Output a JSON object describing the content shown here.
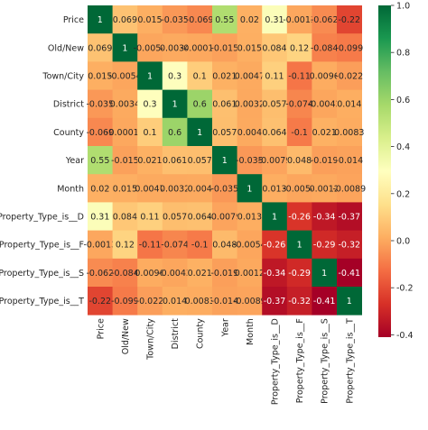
{
  "chart_data": {
    "type": "heatmap",
    "title": "",
    "labels": [
      "Price",
      "Old/New",
      "Town/City",
      "District",
      "County",
      "Year",
      "Month",
      "Property_Type_is__D",
      "Property_Type_is__F",
      "Property_Type_is__S",
      "Property_Type_is__T"
    ],
    "matrix_display": [
      [
        "1",
        "0.069",
        "0.015",
        "-0.035",
        "-0.069",
        "0.55",
        "0.02",
        "0.31",
        "-0.0013",
        "-0.062",
        "-0.22"
      ],
      [
        "0.069",
        "1",
        "-0.0054",
        "0.0034",
        "-0.00017",
        "-0.015",
        "0.015",
        "0.084",
        "0.12",
        "-0.084",
        "-0.099"
      ],
      [
        "0.015",
        "-0.0054",
        "1",
        "0.3",
        "0.1",
        "0.021",
        "0.0047",
        "0.11",
        "-0.11",
        "0.0096",
        "-0.022"
      ],
      [
        "-0.035",
        "0.0034",
        "0.3",
        "1",
        "0.6",
        "0.061",
        "0.0032",
        "0.057",
        "-0.074",
        "-0.0043",
        "0.014"
      ],
      [
        "-0.069",
        "-0.00017",
        "0.1",
        "0.6",
        "1",
        "0.057",
        "0.004",
        "0.064",
        "-0.1",
        "0.021",
        "0.0083"
      ],
      [
        "0.55",
        "-0.015",
        "0.021",
        "0.061",
        "0.057",
        "1",
        "-0.035",
        "-0.0079",
        "0.048",
        "-0.019",
        "-0.014"
      ],
      [
        "0.02",
        "0.015",
        "0.0047",
        "0.0032",
        "0.004",
        "-0.035",
        "1",
        "0.013",
        "-0.0054",
        "0.0012",
        "-0.0089"
      ],
      [
        "0.31",
        "0.084",
        "0.11",
        "0.057",
        "0.064",
        "-0.0079",
        "0.013",
        "1",
        "-0.26",
        "-0.34",
        "-0.37"
      ],
      [
        "-0.0013",
        "0.12",
        "-0.11",
        "-0.074",
        "-0.1",
        "0.048",
        "-0.0054",
        "-0.26",
        "1",
        "-0.29",
        "-0.32"
      ],
      [
        "-0.062",
        "-0.084",
        "0.0096",
        "-0.0043",
        "0.021",
        "-0.019",
        "0.0012",
        "-0.34",
        "-0.29",
        "1",
        "-0.41"
      ],
      [
        "-0.22",
        "-0.099",
        "-0.022",
        "0.014",
        "0.0083",
        "-0.014",
        "-0.0089",
        "-0.37",
        "-0.32",
        "-0.41",
        "1"
      ]
    ],
    "colormap": "RdYlGn",
    "vmin": -0.41,
    "vmax": 1,
    "colorbar_ticks": [
      "-0.4",
      "-0.2",
      "0.0",
      "0.2",
      "0.4",
      "0.6",
      "0.8",
      "1.0"
    ],
    "colorbar_tick_values": [
      -0.4,
      -0.2,
      0.0,
      0.2,
      0.4,
      0.6,
      0.8,
      1.0
    ]
  }
}
